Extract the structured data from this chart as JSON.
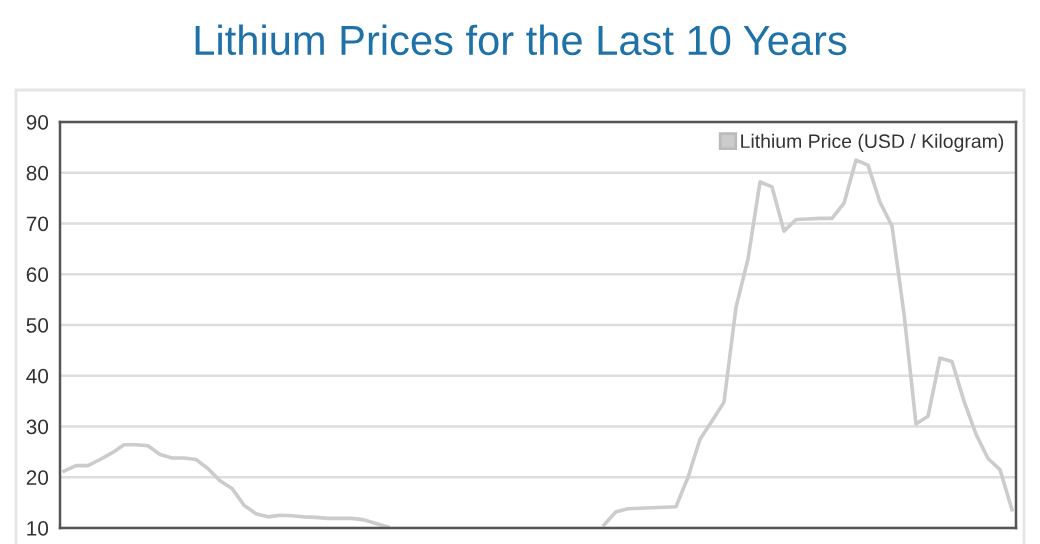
{
  "chart_data": {
    "type": "line",
    "title": "Lithium Prices for the Last 10 Years",
    "categories": [
      null,
      null,
      null,
      null,
      null,
      null,
      null,
      null,
      null,
      null,
      null,
      null,
      null,
      null,
      null,
      null,
      null,
      null,
      null,
      null,
      null,
      null,
      null,
      null,
      null,
      null,
      null,
      null,
      null,
      null,
      null,
      null,
      null,
      null,
      null,
      null,
      null,
      null,
      null,
      null,
      null,
      null,
      null,
      null,
      null,
      null,
      null,
      null,
      null,
      null,
      null,
      null,
      null,
      null,
      null,
      null,
      null,
      null,
      null,
      null,
      null,
      null,
      null,
      null,
      null,
      null,
      null,
      null,
      null,
      null,
      null,
      null,
      null,
      null,
      null,
      null,
      null,
      null,
      null,
      null
    ],
    "series": [
      {
        "name": "Lithium Price (USD / Kilogram)",
        "color": "#cccccc",
        "values": [
          21.2,
          22.3,
          22.3,
          23.5,
          24.8,
          26.4,
          26.4,
          26.2,
          24.5,
          23.8,
          23.8,
          23.5,
          21.7,
          19.3,
          17.8,
          14.5,
          12.8,
          12.2,
          12.5,
          12.4,
          12.2,
          12.1,
          11.9,
          11.9,
          11.9,
          11.6,
          10.9,
          10.2,
          null,
          null,
          null,
          null,
          null,
          null,
          null,
          null,
          null,
          null,
          null,
          null,
          null,
          null,
          null,
          null,
          null,
          10.6,
          13.2,
          13.8,
          13.9,
          14.0,
          14.1,
          14.2,
          20,
          27.5,
          31.1,
          34.8,
          53.5,
          63,
          78.2,
          77.2,
          68.5,
          70.8,
          70.9,
          71.0,
          71.0,
          74,
          82.5,
          81.5,
          74.2,
          69.5,
          52.2,
          30.5,
          32,
          43.5,
          42.8,
          35,
          28.5,
          23.7,
          21.5,
          13.6
        ]
      }
    ],
    "ylim": [
      10,
      90
    ],
    "yticks": [
      10,
      20,
      30,
      40,
      50,
      60,
      70,
      80,
      90
    ],
    "grid": "y",
    "legend": "top right",
    "marker": "none",
    "line_style": "solid"
  }
}
